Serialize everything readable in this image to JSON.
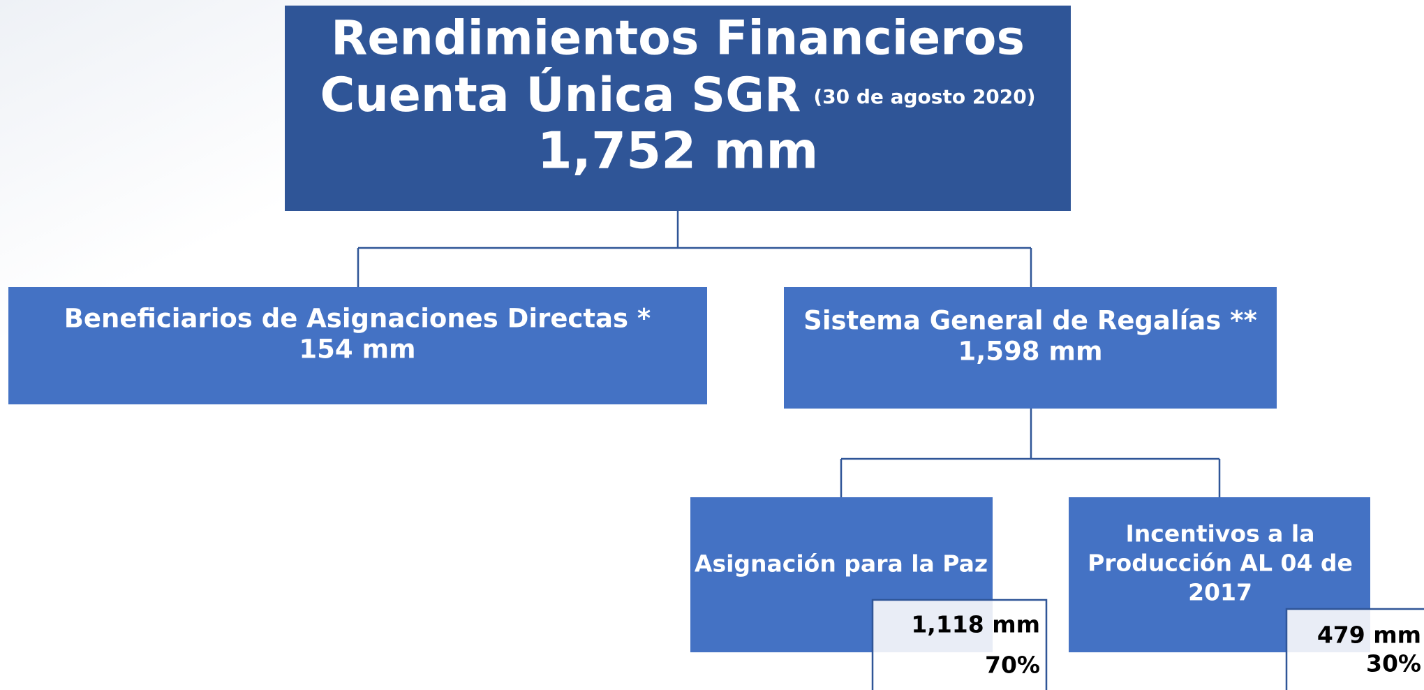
{
  "header": {
    "title_line1": "Rendimientos Financieros",
    "title_line2": "Cuenta Única SGR",
    "date": "(30 de agosto 2020)",
    "total": "1,752 mm"
  },
  "nodes": [
    {
      "label": "Beneficiarios de Asignaciones Directas *",
      "amount": "154 mm"
    },
    {
      "label": "Sistema General de Regalías **",
      "amount": "1,598 mm"
    },
    {
      "label": "Asignación para la Paz",
      "amount": "1,118 mm",
      "share": "70%"
    },
    {
      "label_lines": [
        "Incentivos a la",
        "Producción AL 04 de",
        "2017"
      ],
      "amount": "479 mm",
      "share": "30%"
    }
  ]
}
